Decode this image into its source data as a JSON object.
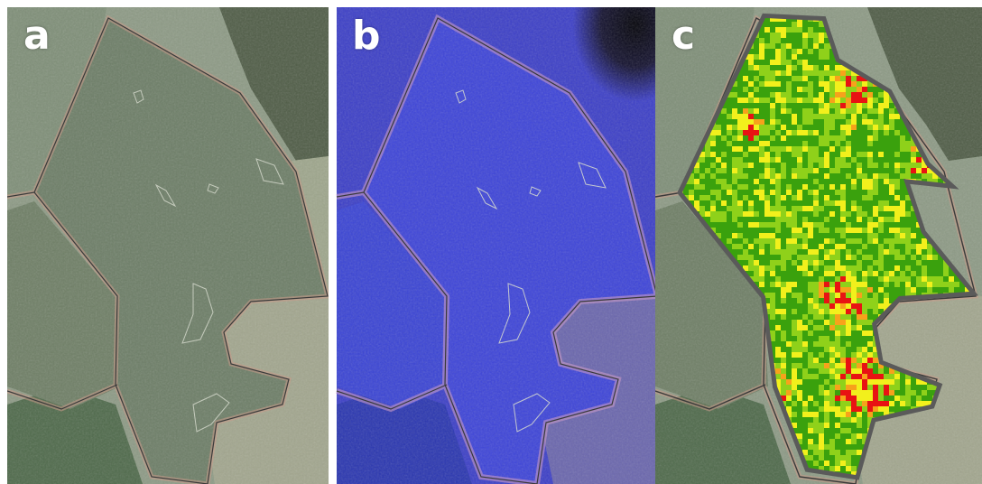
{
  "panels": [
    {
      "label": "a",
      "kind": "true-color-satellite-image"
    },
    {
      "label": "b",
      "kind": "false-color-satellite-image"
    },
    {
      "label": "c",
      "kind": "classified-health-map"
    }
  ],
  "colors": {
    "sample_outline": "#d8dccf",
    "boundary_line": "#3a3a3a",
    "class_palette": [
      "#3aa10d",
      "#8fd11a",
      "#f2f01c",
      "#f7a21b",
      "#e81313"
    ]
  }
}
